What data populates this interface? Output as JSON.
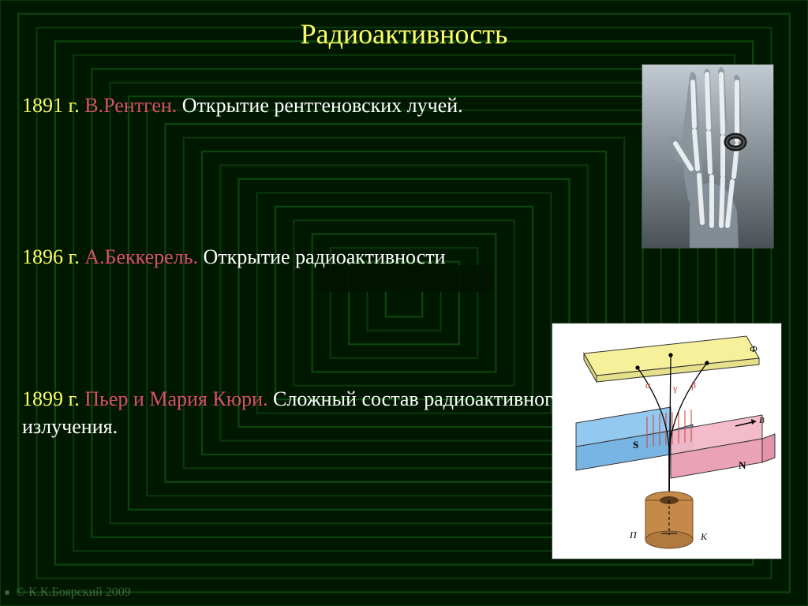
{
  "title": "Радиоактивность",
  "lines": [
    {
      "year": "1891 г.",
      "name": "В.Рентген.",
      "rest": " Открытие рентгеновских лучей."
    },
    {
      "year": "1896 г.",
      "name": "А.Беккерель.",
      "rest": " Открытие радиоактивности"
    },
    {
      "year": "1899 г.",
      "name": "Пьер и Мария Кюри.",
      "rest": " Сложный состав радиоактивного излучения."
    }
  ],
  "footer": "© К.К.Боярский 2009",
  "style": {
    "slide_size": [
      1024,
      768
    ],
    "background_base": "#001800",
    "ring_colors": [
      "#0b3a0b",
      "#0e4a0e"
    ],
    "ring_count": 22,
    "title_color": "#ffff66",
    "year_color": "#ffff66",
    "name_color": "#d94f6a",
    "text_color": "#ffffff",
    "title_fontsize": 36,
    "body_fontsize": 26,
    "font_family": "Times New Roman"
  },
  "images": {
    "xray_hand": {
      "type": "illustration",
      "description": "first X-ray of a hand with ring",
      "skin_tone": "#9aa6ac",
      "bone_tone": "#e8ecef",
      "ring_color": "#2a2a2a",
      "bg_gradient": [
        "#b8c0c8",
        "#414a50"
      ]
    },
    "radiation_split": {
      "type": "diagram",
      "description": "alpha-beta-gamma deflection in magnetic field",
      "plate_top_color": "#f5f099",
      "magnet_s_color": "#93c8ef",
      "magnet_n_color": "#f4b9c8",
      "container_fill": "#c58a4a",
      "container_stroke": "#6b4a24",
      "field_lines_color": "#d33a3a",
      "ray_color": "#000000",
      "labels": {
        "S": "S",
        "N": "N",
        "alpha": "α",
        "beta": "β",
        "gamma": "γ",
        "B": "B",
        "phi": "Ф",
        "P": "П",
        "K": "К"
      },
      "label_color_greek": "#cc3333",
      "label_color_latin": "#000000"
    }
  }
}
